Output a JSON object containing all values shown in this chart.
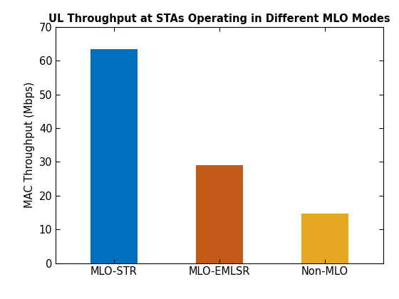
{
  "categories": [
    "MLO-STR",
    "MLO-EMLSR",
    "Non-MLO"
  ],
  "values": [
    63.5,
    29.0,
    14.7
  ],
  "bar_colors": [
    "#0072BD",
    "#C45A17",
    "#E5A820"
  ],
  "title": "UL Throughput at STAs Operating in Different MLO Modes",
  "ylabel": "MAC Throughput (Mbps)",
  "ylim": [
    0,
    70
  ],
  "yticks": [
    0,
    10,
    20,
    30,
    40,
    50,
    60,
    70
  ],
  "title_fontsize": 10.5,
  "label_fontsize": 10.5,
  "tick_fontsize": 10.5,
  "bar_width": 0.45,
  "background_color": "#ffffff",
  "xlim": [
    -0.55,
    2.55
  ]
}
